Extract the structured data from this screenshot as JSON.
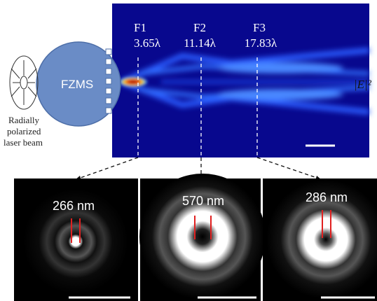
{
  "field_map": {
    "foci": [
      {
        "label": "F1",
        "distance": "3.65λ"
      },
      {
        "label": "F2",
        "distance": "11.14λ"
      },
      {
        "label": "F3",
        "distance": "17.83λ"
      }
    ],
    "lens_label": "FZMS",
    "colorbar_label": "|E|²",
    "source_label": [
      "Radially",
      "polarized",
      "laser beam"
    ]
  },
  "panels": [
    {
      "size": "266 nm"
    },
    {
      "size": "570 nm"
    },
    {
      "size": "286 nm"
    }
  ]
}
